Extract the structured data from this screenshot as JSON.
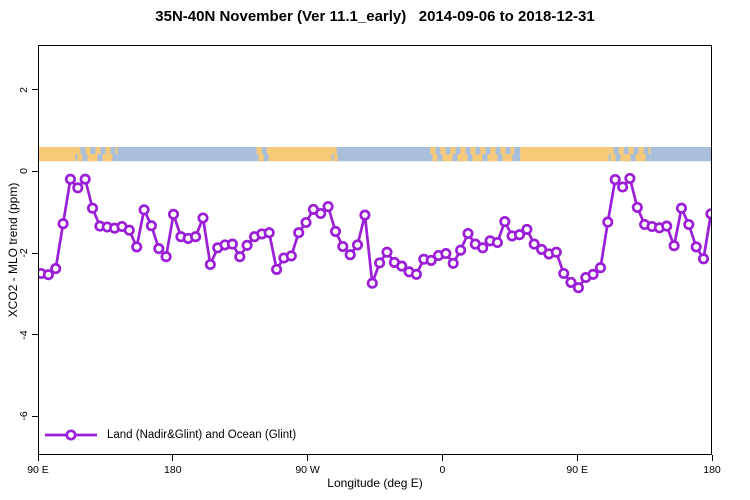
{
  "title": "35N-40N November (Ver 11.1_early)   2014-09-06 to 2018-12-31",
  "axes": {
    "x_title": "Longitude (deg E)",
    "y_title": "XCO2 - MLO trend (ppm)"
  },
  "legend": {
    "label": "Land (Nadir&Glint) and Ocean (Glint)"
  },
  "colors": {
    "series": "#9B1FD8",
    "marker_fill": "#FFFFFF",
    "land": "#F8CA78",
    "ocean": "#A8BFDC",
    "frame": "#000000",
    "background": "#FFFFFF"
  },
  "chart_data": {
    "type": "line",
    "title": "35N-40N November (Ver 11.1_early)   2014-09-06 to 2018-12-31",
    "xlabel": "Longitude (deg E)",
    "ylabel": "XCO2 - MLO trend (ppm)",
    "grid": false,
    "legend_position": "bottom-left-inside",
    "x_axis": {
      "min": 90,
      "max": 540,
      "tick_values": [
        90,
        180,
        270,
        360,
        450,
        540
      ],
      "tick_labels": [
        "90 E",
        "180",
        "90 W",
        "0",
        "90 E",
        "180"
      ]
    },
    "y_axis": {
      "min": -6.95,
      "max": 3.1,
      "tick_values": [
        2,
        0,
        -2,
        -4,
        -6
      ],
      "tick_labels": [
        "2",
        "0",
        "-2",
        "-4",
        "-6"
      ]
    },
    "series": [
      {
        "name": "Land (Nadir&Glint) and Ocean (Glint)",
        "color": "#9B1FD8",
        "marker": "open-circle",
        "x_start": 92.0,
        "x_step": 4.915,
        "values": [
          -2.5,
          -2.53,
          -2.38,
          -1.28,
          -0.19,
          -0.4,
          -0.19,
          -0.9,
          -1.34,
          -1.36,
          -1.39,
          -1.35,
          -1.44,
          -1.85,
          -0.94,
          -1.33,
          -1.89,
          -2.09,
          -1.05,
          -1.6,
          -1.64,
          -1.6,
          -1.14,
          -2.28,
          -1.87,
          -1.8,
          -1.78,
          -2.09,
          -1.81,
          -1.6,
          -1.53,
          -1.5,
          -2.4,
          -2.12,
          -2.07,
          -1.5,
          -1.25,
          -0.93,
          -1.03,
          -0.86,
          -1.47,
          -1.84,
          -2.04,
          -1.8,
          -1.07,
          -2.74,
          -2.24,
          -1.98,
          -2.23,
          -2.32,
          -2.46,
          -2.52,
          -2.15,
          -2.18,
          -2.06,
          -2.01,
          -2.25,
          -1.93,
          -1.52,
          -1.78,
          -1.87,
          -1.7,
          -1.74,
          -1.23,
          -1.58,
          -1.55,
          -1.42,
          -1.78,
          -1.91,
          -2.02,
          -1.98,
          -2.5,
          -2.72,
          -2.85,
          -2.6,
          -2.52,
          -2.36,
          -1.24,
          -0.2,
          -0.38,
          -0.17,
          -0.88,
          -1.3,
          -1.35,
          -1.38,
          -1.34,
          -1.82,
          -0.9,
          -1.3,
          -1.85,
          -2.14,
          -1.04
        ]
      }
    ],
    "land_ocean_band": {
      "value_top": 0.6,
      "value_bottom": 0.25,
      "land_color": "#F8CA78",
      "ocean_color": "#A8BFDC",
      "segments": [
        {
          "from": 90,
          "to": 115,
          "type": "land"
        },
        {
          "from": 115,
          "to": 143,
          "type": "mixed"
        },
        {
          "from": 143,
          "to": 236,
          "type": "ocean"
        },
        {
          "from": 236,
          "to": 244,
          "type": "mixed"
        },
        {
          "from": 244,
          "to": 286,
          "type": "land"
        },
        {
          "from": 286,
          "to": 290,
          "type": "mixed"
        },
        {
          "from": 290,
          "to": 352,
          "type": "ocean"
        },
        {
          "from": 352,
          "to": 408,
          "type": "mixed"
        },
        {
          "from": 408,
          "to": 412,
          "type": "ocean"
        },
        {
          "from": 412,
          "to": 471,
          "type": "land"
        },
        {
          "from": 471,
          "to": 499,
          "type": "mixed"
        },
        {
          "from": 499,
          "to": 540,
          "type": "ocean"
        }
      ]
    }
  }
}
